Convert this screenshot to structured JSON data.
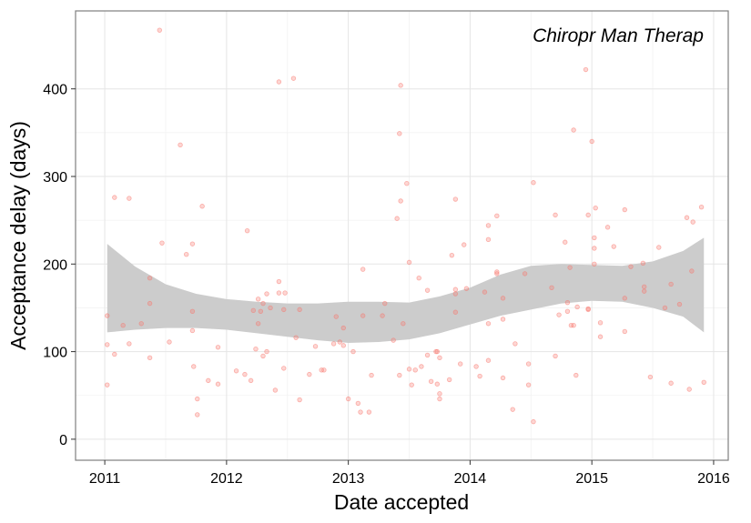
{
  "chart_data": {
    "type": "scatter",
    "annotation": "Chiropr Man Therap",
    "xlabel": "Date accepted",
    "ylabel": "Acceptance delay (days)",
    "xlim": [
      2010.76,
      2016.12
    ],
    "xticks": [
      2011,
      2012,
      2013,
      2014,
      2015,
      2016
    ],
    "ylim": [
      -24,
      489
    ],
    "yticks": [
      0,
      100,
      200,
      300,
      400
    ],
    "grid": true,
    "color": "#f8766d",
    "x": [
      2011.02,
      2011.02,
      2011.02,
      2011.08,
      2011.08,
      2011.15,
      2011.2,
      2011.2,
      2011.3,
      2011.37,
      2011.37,
      2011.37,
      2011.45,
      2011.47,
      2011.53,
      2011.62,
      2011.67,
      2011.72,
      2011.72,
      2011.72,
      2011.73,
      2011.76,
      2011.76,
      2011.8,
      2011.85,
      2011.93,
      2011.93,
      2012.08,
      2012.15,
      2012.17,
      2012.2,
      2012.22,
      2012.24,
      2012.26,
      2012.26,
      2012.28,
      2012.3,
      2012.3,
      2012.33,
      2012.33,
      2012.36,
      2012.4,
      2012.43,
      2012.43,
      2012.43,
      2012.48,
      2012.47,
      2012.47,
      2012.55,
      2012.57,
      2012.6,
      2012.6,
      2012.68,
      2012.73,
      2012.78,
      2012.8,
      2012.88,
      2012.9,
      2012.93,
      2012.96,
      2012.96,
      2013.0,
      2013.04,
      2013.08,
      2013.1,
      2013.12,
      2013.12,
      2013.17,
      2013.19,
      2013.28,
      2013.3,
      2013.37,
      2013.4,
      2013.42,
      2013.43,
      2013.43,
      2013.42,
      2013.45,
      2013.48,
      2013.5,
      2013.5,
      2013.52,
      2013.55,
      2013.58,
      2013.6,
      2013.65,
      2013.65,
      2013.68,
      2013.72,
      2013.73,
      2013.73,
      2013.75,
      2013.75,
      2013.75,
      2013.83,
      2013.85,
      2013.88,
      2013.88,
      2013.88,
      2013.88,
      2013.92,
      2013.95,
      2013.97,
      2014.05,
      2014.08,
      2014.12,
      2014.15,
      2014.15,
      2014.15,
      2014.15,
      2014.22,
      2014.22,
      2014.22,
      2014.27,
      2014.27,
      2014.27,
      2014.35,
      2014.37,
      2014.45,
      2014.48,
      2014.48,
      2014.52,
      2014.52,
      2014.67,
      2014.7,
      2014.7,
      2014.73,
      2014.78,
      2014.8,
      2014.8,
      2014.82,
      2014.83,
      2014.85,
      2014.85,
      2014.87,
      2014.88,
      2014.95,
      2014.97,
      2014.97,
      2014.97,
      2015.0,
      2015.02,
      2015.03,
      2015.02,
      2015.02,
      2015.07,
      2015.07,
      2015.13,
      2015.18,
      2015.27,
      2015.27,
      2015.27,
      2015.32,
      2015.42,
      2015.43,
      2015.43,
      2015.48,
      2015.55,
      2015.6,
      2015.65,
      2015.65,
      2015.72,
      2015.78,
      2015.8,
      2015.82,
      2015.83,
      2015.9,
      2015.92
    ],
    "values": [
      141,
      108,
      62,
      276,
      97,
      130,
      275,
      109,
      132,
      184,
      155,
      93,
      467,
      224,
      111,
      336,
      211,
      223,
      146,
      124,
      83,
      46,
      28,
      266,
      67,
      105,
      63,
      78,
      74,
      238,
      67,
      147,
      103,
      160,
      132,
      146,
      155,
      95,
      166,
      100,
      150,
      56,
      408,
      180,
      167,
      167,
      148,
      81,
      412,
      116,
      148,
      45,
      74,
      106,
      79,
      79,
      109,
      140,
      111,
      127,
      107,
      46,
      100,
      41,
      31,
      194,
      141,
      31,
      73,
      141,
      155,
      113,
      252,
      349,
      404,
      272,
      73,
      132,
      292,
      80,
      202,
      62,
      79,
      184,
      83,
      170,
      96,
      66,
      100,
      100,
      63,
      93,
      52,
      46,
      68,
      210,
      274,
      171,
      166,
      145,
      86,
      222,
      172,
      83,
      72,
      168,
      244,
      228,
      132,
      90,
      255,
      191,
      189,
      161,
      137,
      70,
      34,
      109,
      189,
      62,
      86,
      20,
      293,
      173,
      95,
      256,
      142,
      225,
      156,
      146,
      196,
      130,
      353,
      130,
      73,
      151,
      422,
      256,
      149,
      148,
      340,
      230,
      264,
      218,
      200,
      133,
      117,
      242,
      220,
      262,
      161,
      123,
      197,
      201,
      174,
      169,
      71,
      219,
      150,
      177,
      64,
      154,
      253,
      57,
      192,
      248,
      265,
      65
    ],
    "band": {
      "color": "#cccccc",
      "x": [
        2011.02,
        2011.25,
        2011.5,
        2011.75,
        2012,
        2012.25,
        2012.5,
        2012.75,
        2013,
        2013.25,
        2013.5,
        2013.75,
        2014,
        2014.25,
        2014.5,
        2014.75,
        2015,
        2015.25,
        2015.5,
        2015.75,
        2015.92
      ],
      "upper": [
        223,
        197,
        177,
        166,
        160,
        157,
        155,
        155,
        157,
        157,
        156,
        163,
        173,
        188,
        198,
        200,
        199,
        198,
        203,
        215,
        230
      ],
      "lower": [
        122,
        125,
        127,
        127,
        125,
        121,
        117,
        113,
        110,
        111,
        114,
        121,
        131,
        141,
        148,
        155,
        158,
        157,
        150,
        140,
        122
      ]
    }
  }
}
